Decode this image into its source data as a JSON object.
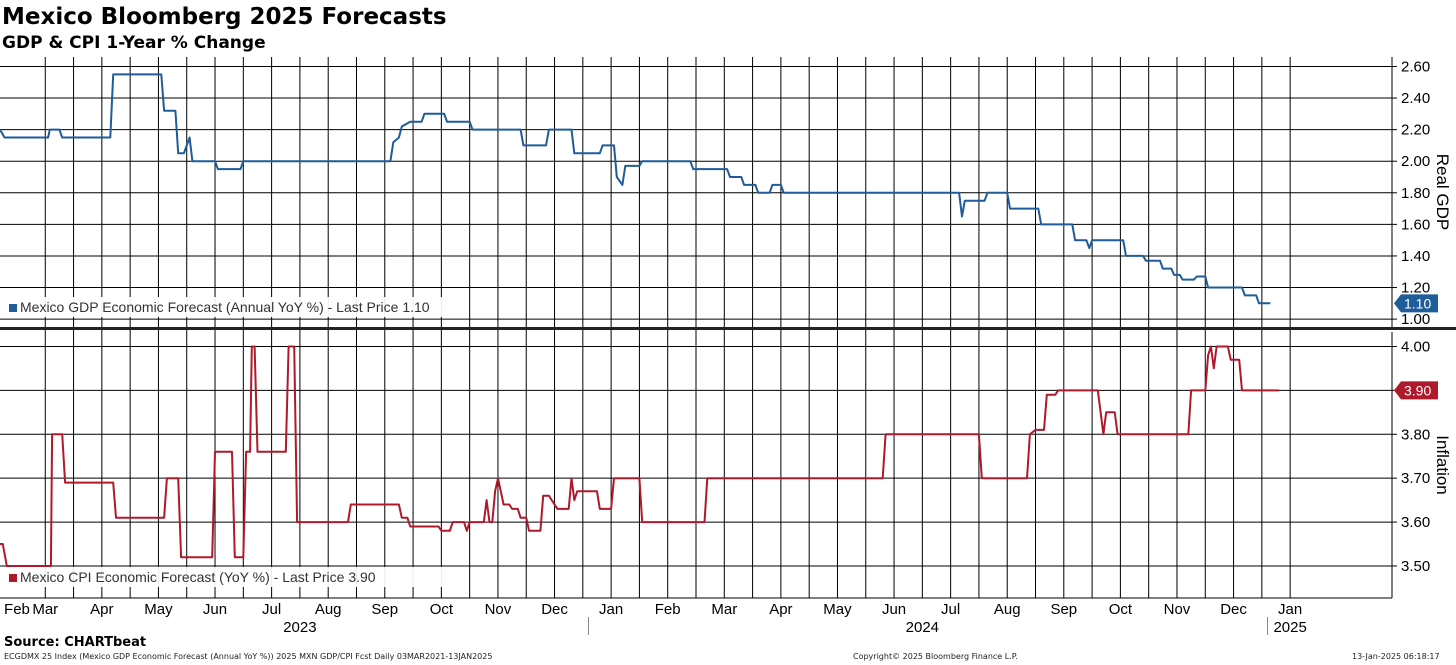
{
  "header": {
    "title": "Mexico Bloomberg 2025 Forecasts",
    "subtitle": "GDP & CPI 1-Year % Change"
  },
  "footer": {
    "source": "Source: CHARTbeat",
    "left": "ECGDMX 25 Index (Mexico GDP Economic Forecast (Annual YoY %)) 2025 MXN GDP/CPI Fcst  Daily 03MAR2021-13JAN2025",
    "center": "Copyright© 2025 Bloomberg Finance L.P.",
    "right": "13-Jan-2025 06:18:17"
  },
  "colors": {
    "gdp": "#1f5c99",
    "cpi": "#b0182b",
    "grid": "#000000"
  },
  "chart_data": {
    "type": "line",
    "x_unit": "months since Jan 2023",
    "x_range": [
      0.0,
      24.6
    ],
    "month_labels": [
      {
        "label": "Feb",
        "pos": 0.3
      },
      {
        "label": "Mar",
        "pos": 0.8
      },
      {
        "label": "Apr",
        "pos": 1.8
      },
      {
        "label": "May",
        "pos": 2.8
      },
      {
        "label": "Jun",
        "pos": 3.8
      },
      {
        "label": "Jul",
        "pos": 4.8
      },
      {
        "label": "Aug",
        "pos": 5.8
      },
      {
        "label": "Sep",
        "pos": 6.8
      },
      {
        "label": "Oct",
        "pos": 7.8
      },
      {
        "label": "Nov",
        "pos": 8.8
      },
      {
        "label": "Dec",
        "pos": 9.8
      },
      {
        "label": "Jan",
        "pos": 10.8
      },
      {
        "label": "Feb",
        "pos": 11.8
      },
      {
        "label": "Mar",
        "pos": 12.8
      },
      {
        "label": "Apr",
        "pos": 13.8
      },
      {
        "label": "May",
        "pos": 14.8
      },
      {
        "label": "Jun",
        "pos": 15.8
      },
      {
        "label": "Jul",
        "pos": 16.8
      },
      {
        "label": "Aug",
        "pos": 17.8
      },
      {
        "label": "Sep",
        "pos": 18.8
      },
      {
        "label": "Oct",
        "pos": 19.8
      },
      {
        "label": "Nov",
        "pos": 20.8
      },
      {
        "label": "Dec",
        "pos": 21.8
      },
      {
        "label": "Jan",
        "pos": 22.8
      }
    ],
    "gridlines": [
      0.8,
      1.3,
      1.8,
      2.3,
      2.8,
      3.3,
      3.8,
      4.3,
      4.8,
      5.3,
      5.8,
      6.3,
      6.8,
      7.3,
      7.8,
      8.3,
      8.8,
      9.3,
      9.8,
      10.3,
      10.8,
      11.3,
      11.8,
      12.3,
      12.8,
      13.3,
      13.8,
      14.3,
      14.8,
      15.3,
      15.8,
      16.3,
      16.8,
      17.3,
      17.8,
      18.3,
      18.8,
      19.3,
      19.8,
      20.3,
      20.8,
      21.3,
      21.8,
      22.3,
      22.8
    ],
    "year_labels": [
      {
        "label": "2023",
        "pos": 5.3
      },
      {
        "label": "2024",
        "pos": 16.3
      },
      {
        "label": "2025",
        "pos": 22.8
      }
    ],
    "year_dividers": [
      10.4,
      22.4
    ],
    "panels": [
      {
        "name": "Mexico GDP Economic Forecast (Annual YoY %)",
        "legend": "Mexico GDP Economic Forecast (Annual YoY %) - Last Price 1.10",
        "axis_label": "Real GDP",
        "last_value": "1.10",
        "ylim": [
          0.95,
          2.66
        ],
        "ticks": [
          {
            "v": 1.0,
            "label": "1.00"
          },
          {
            "v": 1.2,
            "label": "1.20"
          },
          {
            "v": 1.4,
            "label": "1.40"
          },
          {
            "v": 1.6,
            "label": "1.60"
          },
          {
            "v": 1.8,
            "label": "1.80"
          },
          {
            "v": 2.0,
            "label": "2.00"
          },
          {
            "v": 2.2,
            "label": "2.20"
          },
          {
            "v": 2.4,
            "label": "2.40"
          },
          {
            "v": 2.6,
            "label": "2.60"
          }
        ],
        "points": [
          [
            0,
            2.2
          ],
          [
            0.08,
            2.15
          ],
          [
            0.85,
            2.15
          ],
          [
            0.88,
            2.2
          ],
          [
            1.05,
            2.2
          ],
          [
            1.1,
            2.15
          ],
          [
            1.95,
            2.15
          ],
          [
            2.0,
            2.55
          ],
          [
            2.85,
            2.55
          ],
          [
            2.9,
            2.32
          ],
          [
            3.1,
            2.32
          ],
          [
            3.15,
            2.05
          ],
          [
            3.25,
            2.05
          ],
          [
            3.35,
            2.15
          ],
          [
            3.4,
            2.0
          ],
          [
            3.8,
            2.0
          ],
          [
            3.85,
            1.95
          ],
          [
            4.25,
            1.95
          ],
          [
            4.3,
            2.0
          ],
          [
            6.9,
            2.0
          ],
          [
            6.95,
            2.12
          ],
          [
            7.05,
            2.15
          ],
          [
            7.1,
            2.22
          ],
          [
            7.25,
            2.25
          ],
          [
            7.45,
            2.25
          ],
          [
            7.5,
            2.3
          ],
          [
            7.85,
            2.3
          ],
          [
            7.9,
            2.25
          ],
          [
            8.3,
            2.25
          ],
          [
            8.35,
            2.2
          ],
          [
            9.2,
            2.2
          ],
          [
            9.25,
            2.1
          ],
          [
            9.65,
            2.1
          ],
          [
            9.7,
            2.2
          ],
          [
            10.1,
            2.2
          ],
          [
            10.15,
            2.05
          ],
          [
            10.6,
            2.05
          ],
          [
            10.65,
            2.1
          ],
          [
            10.85,
            2.1
          ],
          [
            10.9,
            1.9
          ],
          [
            11.0,
            1.85
          ],
          [
            11.05,
            1.97
          ],
          [
            11.3,
            1.97
          ],
          [
            11.35,
            2.0
          ],
          [
            12.2,
            2.0
          ],
          [
            12.25,
            1.95
          ],
          [
            12.85,
            1.95
          ],
          [
            12.9,
            1.9
          ],
          [
            13.1,
            1.9
          ],
          [
            13.15,
            1.85
          ],
          [
            13.35,
            1.85
          ],
          [
            13.4,
            1.8
          ],
          [
            13.6,
            1.8
          ],
          [
            13.65,
            1.85
          ],
          [
            13.8,
            1.85
          ],
          [
            13.85,
            1.8
          ],
          [
            16.95,
            1.8
          ],
          [
            17.0,
            1.65
          ],
          [
            17.05,
            1.75
          ],
          [
            17.4,
            1.75
          ],
          [
            17.45,
            1.8
          ],
          [
            17.8,
            1.8
          ],
          [
            17.85,
            1.7
          ],
          [
            18.35,
            1.7
          ],
          [
            18.4,
            1.6
          ],
          [
            18.95,
            1.6
          ],
          [
            19.0,
            1.5
          ],
          [
            19.2,
            1.5
          ],
          [
            19.25,
            1.45
          ],
          [
            19.3,
            1.5
          ],
          [
            19.85,
            1.5
          ],
          [
            19.9,
            1.4
          ],
          [
            20.2,
            1.4
          ],
          [
            20.25,
            1.37
          ],
          [
            20.5,
            1.37
          ],
          [
            20.55,
            1.32
          ],
          [
            20.7,
            1.32
          ],
          [
            20.75,
            1.28
          ],
          [
            20.85,
            1.28
          ],
          [
            20.9,
            1.25
          ],
          [
            21.1,
            1.25
          ],
          [
            21.15,
            1.27
          ],
          [
            21.3,
            1.27
          ],
          [
            21.35,
            1.2
          ],
          [
            21.95,
            1.2
          ],
          [
            22.0,
            1.15
          ],
          [
            22.2,
            1.15
          ],
          [
            22.25,
            1.1
          ],
          [
            22.45,
            1.1
          ]
        ]
      },
      {
        "name": "Mexico CPI Economic Forecast (YoY %)",
        "legend": "Mexico CPI Economic Forecast (YoY %) - Last Price 3.90",
        "axis_label": "Inflation",
        "last_value": "3.90",
        "ylim": [
          3.427,
          4.033
        ],
        "ticks": [
          {
            "v": 3.5,
            "label": "3.50"
          },
          {
            "v": 3.6,
            "label": "3.60"
          },
          {
            "v": 3.7,
            "label": "3.70"
          },
          {
            "v": 3.8,
            "label": "3.80"
          },
          {
            "v": 3.9,
            "label": "3.90"
          },
          {
            "v": 4.0,
            "label": "4.00"
          }
        ],
        "points": [
          [
            0,
            3.55
          ],
          [
            0.05,
            3.55
          ],
          [
            0.12,
            3.5
          ],
          [
            0.9,
            3.5
          ],
          [
            0.92,
            3.8
          ],
          [
            1.1,
            3.8
          ],
          [
            1.15,
            3.69
          ],
          [
            2.0,
            3.69
          ],
          [
            2.05,
            3.61
          ],
          [
            2.9,
            3.61
          ],
          [
            2.95,
            3.7
          ],
          [
            3.15,
            3.7
          ],
          [
            3.2,
            3.52
          ],
          [
            3.75,
            3.52
          ],
          [
            3.8,
            3.76
          ],
          [
            4.1,
            3.76
          ],
          [
            4.15,
            3.52
          ],
          [
            4.3,
            3.52
          ],
          [
            4.35,
            3.76
          ],
          [
            4.42,
            3.76
          ],
          [
            4.45,
            4.0
          ],
          [
            4.5,
            4.0
          ],
          [
            4.55,
            3.76
          ],
          [
            5.05,
            3.76
          ],
          [
            5.1,
            4.0
          ],
          [
            5.2,
            4.0
          ],
          [
            5.25,
            3.6
          ],
          [
            6.15,
            3.6
          ],
          [
            6.2,
            3.64
          ],
          [
            7.05,
            3.64
          ],
          [
            7.1,
            3.61
          ],
          [
            7.2,
            3.61
          ],
          [
            7.25,
            3.59
          ],
          [
            7.75,
            3.59
          ],
          [
            7.8,
            3.58
          ],
          [
            7.95,
            3.58
          ],
          [
            8.0,
            3.6
          ],
          [
            8.2,
            3.6
          ],
          [
            8.25,
            3.58
          ],
          [
            8.3,
            3.6
          ],
          [
            8.55,
            3.6
          ],
          [
            8.6,
            3.65
          ],
          [
            8.65,
            3.6
          ],
          [
            8.7,
            3.6
          ],
          [
            8.75,
            3.67
          ],
          [
            8.8,
            3.7
          ],
          [
            8.85,
            3.67
          ],
          [
            8.9,
            3.64
          ],
          [
            9.0,
            3.64
          ],
          [
            9.05,
            3.63
          ],
          [
            9.15,
            3.63
          ],
          [
            9.2,
            3.61
          ],
          [
            9.3,
            3.61
          ],
          [
            9.35,
            3.58
          ],
          [
            9.55,
            3.58
          ],
          [
            9.6,
            3.66
          ],
          [
            9.7,
            3.66
          ],
          [
            9.75,
            3.65
          ],
          [
            9.85,
            3.63
          ],
          [
            10.05,
            3.63
          ],
          [
            10.1,
            3.7
          ],
          [
            10.15,
            3.65
          ],
          [
            10.2,
            3.67
          ],
          [
            10.55,
            3.67
          ],
          [
            10.6,
            3.63
          ],
          [
            10.8,
            3.63
          ],
          [
            10.85,
            3.7
          ],
          [
            11.3,
            3.7
          ],
          [
            11.35,
            3.6
          ],
          [
            12.45,
            3.6
          ],
          [
            12.5,
            3.7
          ],
          [
            15.6,
            3.7
          ],
          [
            15.65,
            3.8
          ],
          [
            17.3,
            3.8
          ],
          [
            17.35,
            3.7
          ],
          [
            18.15,
            3.7
          ],
          [
            18.2,
            3.8
          ],
          [
            18.3,
            3.81
          ],
          [
            18.45,
            3.81
          ],
          [
            18.5,
            3.89
          ],
          [
            18.65,
            3.89
          ],
          [
            18.7,
            3.9
          ],
          [
            19.4,
            3.9
          ],
          [
            19.45,
            3.85
          ],
          [
            19.5,
            3.8
          ],
          [
            19.55,
            3.85
          ],
          [
            19.7,
            3.85
          ],
          [
            19.75,
            3.8
          ],
          [
            21.0,
            3.8
          ],
          [
            21.05,
            3.9
          ],
          [
            21.3,
            3.9
          ],
          [
            21.35,
            3.98
          ],
          [
            21.4,
            4.0
          ],
          [
            21.45,
            3.95
          ],
          [
            21.5,
            4.0
          ],
          [
            21.7,
            4.0
          ],
          [
            21.75,
            3.97
          ],
          [
            21.9,
            3.97
          ],
          [
            21.95,
            3.9
          ],
          [
            22.6,
            3.9
          ]
        ]
      }
    ]
  }
}
